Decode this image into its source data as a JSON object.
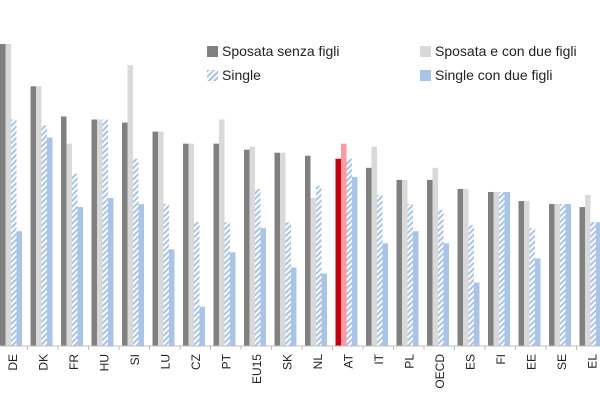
{
  "chart_data": {
    "type": "bar",
    "title": "",
    "xlabel": "",
    "ylabel": "",
    "ylim": [
      0,
      100
    ],
    "grid": false,
    "legend_position": "top-right",
    "highlight_category": "AT",
    "categories": [
      "DE",
      "DK",
      "FR",
      "HU",
      "SI",
      "LU",
      "CZ",
      "PT",
      "EU15",
      "SK",
      "NL",
      "AT",
      "IT",
      "PL",
      "OECD",
      "ES",
      "FI",
      "EE",
      "SE",
      "EL"
    ],
    "series": [
      {
        "name": "Sposata senza figli",
        "color": "#808080",
        "highlight_color": "#c0000f",
        "values": [
          100,
          86,
          76,
          75,
          74,
          71,
          67,
          67,
          65,
          64,
          63,
          62,
          59,
          55,
          55,
          52,
          51,
          48,
          47,
          46
        ]
      },
      {
        "name": "Sposata e con due figli",
        "color": "#d9d9d9",
        "highlight_color": "#ff9aa2",
        "values": [
          100,
          86,
          67,
          75,
          93,
          71,
          67,
          75,
          66,
          64,
          49,
          67,
          66,
          55,
          59,
          52,
          51,
          48,
          47,
          50
        ]
      },
      {
        "name": "Single",
        "color": "#a9c4e6",
        "pattern": "hatch",
        "values": [
          75,
          73,
          57,
          75,
          62,
          47,
          41,
          41,
          52,
          41,
          53,
          62,
          50,
          47,
          45,
          40,
          51,
          39,
          47,
          41
        ]
      },
      {
        "name": "Single con due figli",
        "color": "#a9c4e6",
        "values": [
          38,
          69,
          46,
          49,
          47,
          32,
          13,
          31,
          39,
          26,
          24,
          56,
          34,
          38,
          34,
          21,
          51,
          29,
          47,
          41
        ]
      }
    ]
  },
  "legend": {
    "items": [
      {
        "label": "Sposata senza figli"
      },
      {
        "label": "Sposata e con due figli"
      },
      {
        "label": "Single"
      },
      {
        "label": "Single con due figli"
      }
    ]
  }
}
